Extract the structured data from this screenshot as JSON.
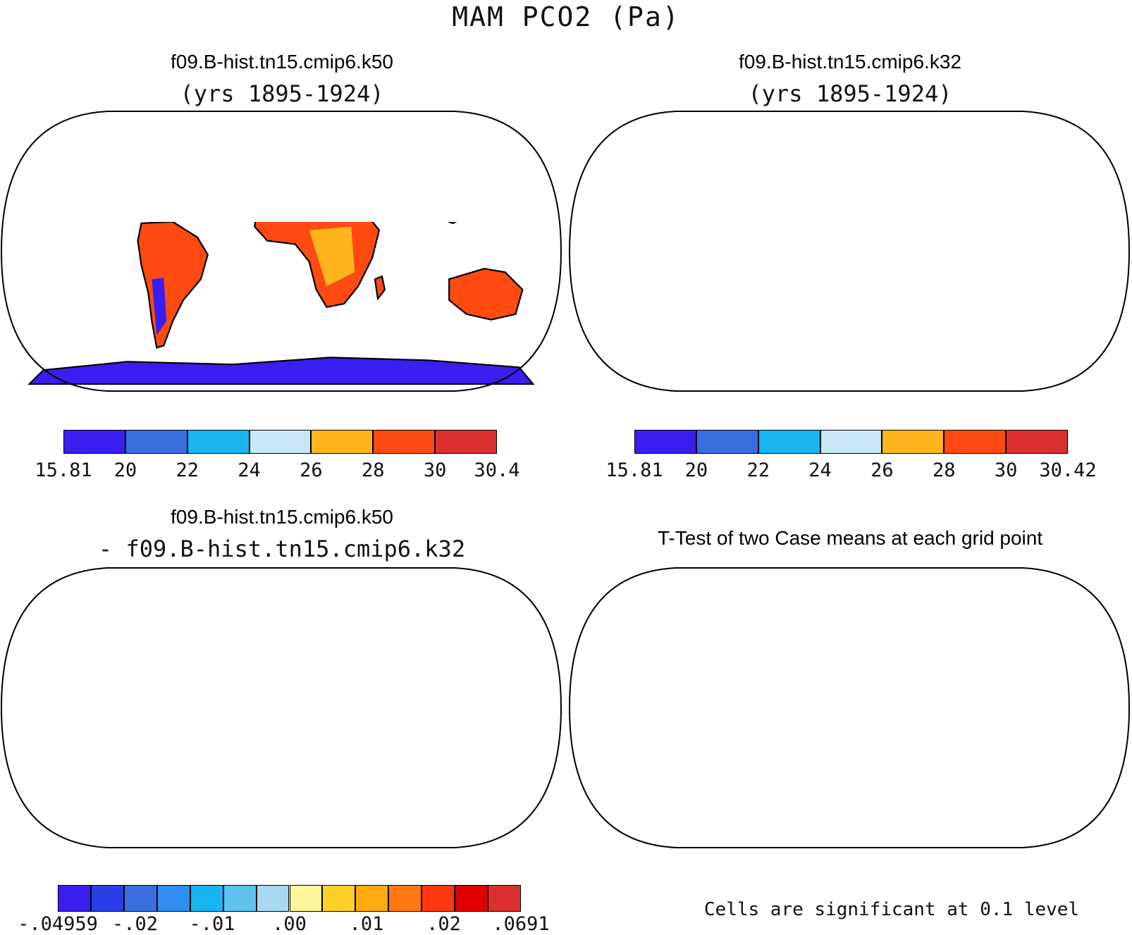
{
  "figure_title": "MAM PCO2 (Pa)",
  "panels": {
    "top_left": {
      "title": "f09.B-hist.tn15.cmip6.k50",
      "subtitle": "(yrs 1895-1924)",
      "colorbar": {
        "colors": [
          "#3a1ef0",
          "#3a6ee0",
          "#17b6f2",
          "#c8e6f6",
          "#ffb61e",
          "#ff4a12",
          "#d9302e"
        ],
        "labels": [
          "15.81",
          "20",
          "22",
          "24",
          "26",
          "28",
          "30",
          "30.4"
        ]
      }
    },
    "top_right": {
      "title": "f09.B-hist.tn15.cmip6.k32",
      "subtitle": "(yrs 1895-1924)",
      "colorbar": {
        "colors": [
          "#3a1ef0",
          "#3a6ee0",
          "#17b6f2",
          "#c8e6f6",
          "#ffb61e",
          "#ff4a12",
          "#d9302e"
        ],
        "labels": [
          "15.81",
          "20",
          "22",
          "24",
          "26",
          "28",
          "30",
          "30.42"
        ]
      }
    },
    "bottom_left": {
      "title": "f09.B-hist.tn15.cmip6.k50",
      "subtitle": "- f09.B-hist.tn15.cmip6.k32",
      "colorbar": {
        "colors": [
          "#3a1ef0",
          "#2a3ee6",
          "#3a6ee0",
          "#2f8ef0",
          "#17b6f2",
          "#5fc0ee",
          "#a8d8f0",
          "#fff59a",
          "#ffd028",
          "#ffaa10",
          "#ff7a10",
          "#ff3a10",
          "#e00000",
          "#d9302e"
        ],
        "labels": [
          "-.04959",
          "-.02",
          "-.01",
          ".00",
          ".01",
          ".02",
          ".0691"
        ]
      }
    },
    "bottom_right": {
      "title": "T-Test of two Case means at each grid point",
      "footer": "Cells are significant at 0.1 level"
    }
  },
  "map_colors": {
    "ocean": "#ffffff",
    "outline": "#000000",
    "field_hi": "#ff4a12",
    "field_mid": "#ffb61e",
    "field_lo": "#3a1ef0",
    "field_cool": "#c8e6f6",
    "diff_neg": "#5fc0ee",
    "diff_pos": "#ffd028",
    "diff_hot": "#d9302e"
  }
}
